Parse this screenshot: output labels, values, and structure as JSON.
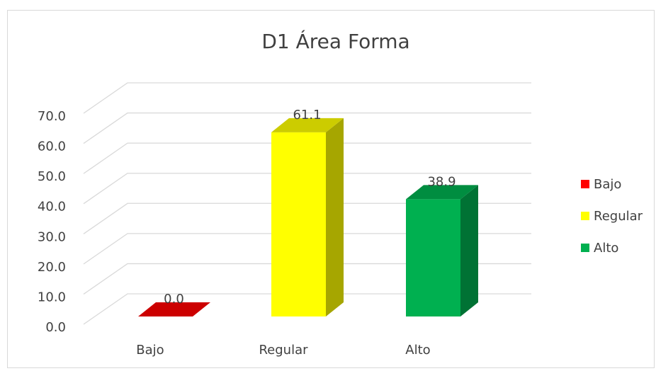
{
  "chart_data": {
    "type": "bar3d",
    "title": "D1 Área Forma",
    "categories": [
      "Bajo",
      "Regular",
      "Alto"
    ],
    "values": [
      0,
      61.1,
      38.9
    ],
    "value_labels": [
      "0.0",
      "61.1",
      "38.9"
    ],
    "colors": [
      "#ff0000",
      "#ffff00",
      "#00b050"
    ],
    "ylim": [
      0,
      70
    ],
    "yticks": [
      {
        "value": 0,
        "label": "0.0"
      },
      {
        "value": 10,
        "label": "10.0"
      },
      {
        "value": 20,
        "label": "20.0"
      },
      {
        "value": 30,
        "label": "30.0"
      },
      {
        "value": 40,
        "label": "40.0"
      },
      {
        "value": 50,
        "label": "50.0"
      },
      {
        "value": 60,
        "label": "60.0"
      },
      {
        "value": 70,
        "label": "70.0"
      }
    ],
    "grid": true,
    "legend": "right"
  }
}
